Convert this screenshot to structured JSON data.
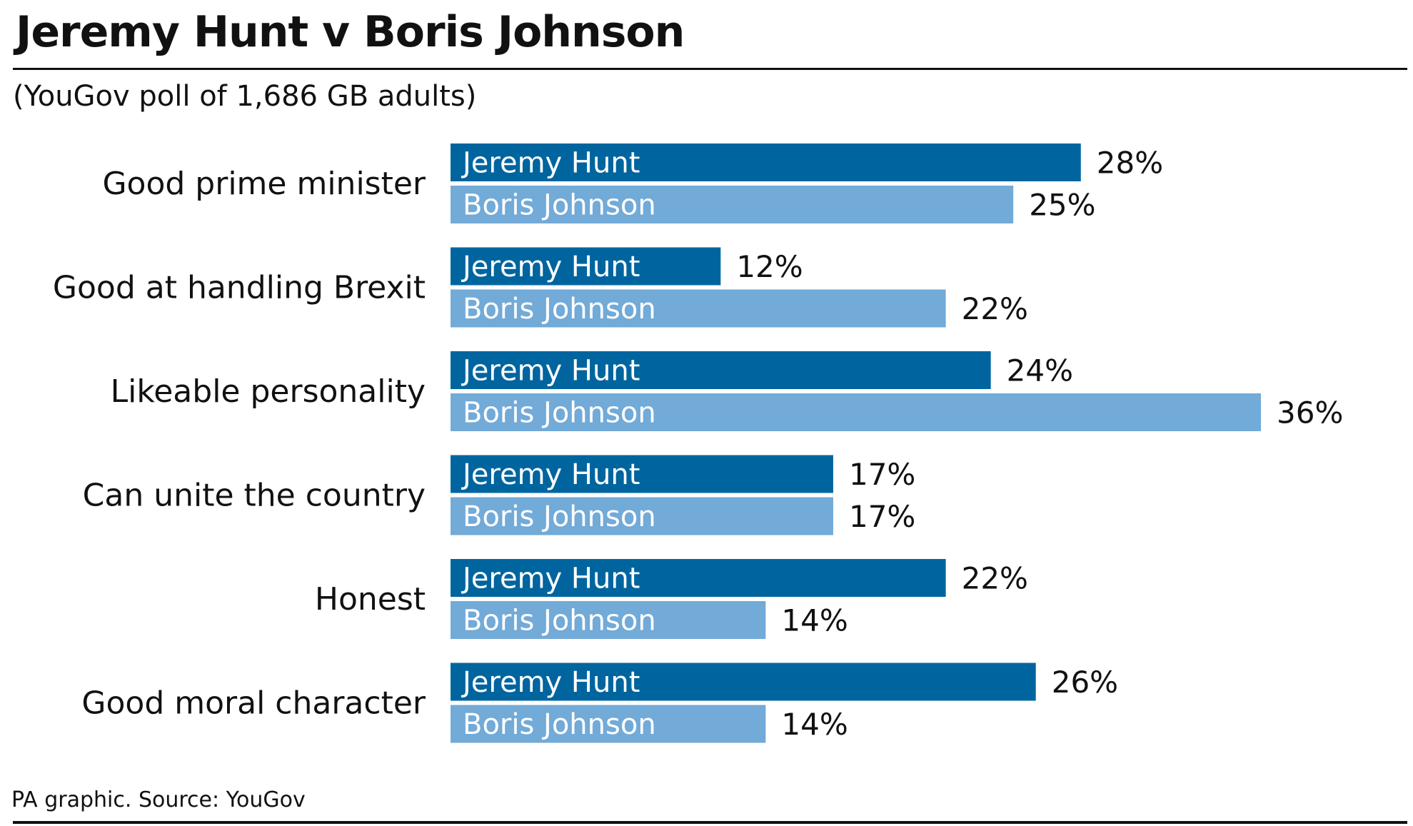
{
  "title": "Jeremy Hunt v Boris Johnson",
  "subtitle": "(YouGov poll of 1,686 GB adults)",
  "footer": "PA graphic. Source: YouGov",
  "colors": {
    "jeremy_hunt": "#00659f",
    "boris_johnson": "#72aad8"
  },
  "chart_data": {
    "type": "bar",
    "orientation": "horizontal",
    "categories": [
      "Good prime minister",
      "Good at handling Brexit",
      "Likeable personality",
      "Can unite the country",
      "Honest",
      "Good moral character"
    ],
    "series": [
      {
        "name": "Jeremy Hunt",
        "values": [
          28,
          12,
          24,
          17,
          22,
          26
        ]
      },
      {
        "name": "Boris Johnson",
        "values": [
          25,
          22,
          36,
          17,
          14,
          14
        ]
      }
    ],
    "value_suffix": "%",
    "xlim": [
      0,
      36
    ],
    "grid": false,
    "legend": "in-bar labels"
  }
}
